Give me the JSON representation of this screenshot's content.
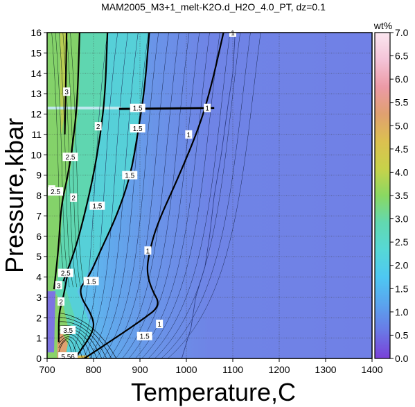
{
  "chart_data": {
    "type": "heatmap",
    "title": "MAM2005_M3+1_melt-K2O.d_H2O_4.0_PT, dz=0.1",
    "xlabel": "Temperature,C",
    "ylabel": "Pressure,kbar",
    "xlim": [
      700,
      1400
    ],
    "ylim": [
      0,
      16
    ],
    "x_ticks": [
      "700",
      "800",
      "900",
      "1000",
      "1100",
      "1200",
      "1300",
      "1400"
    ],
    "y_ticks": [
      "0",
      "1",
      "2",
      "3",
      "4",
      "5",
      "6",
      "7",
      "8",
      "9",
      "10",
      "11",
      "12",
      "13",
      "14",
      "15",
      "16"
    ],
    "grid": true,
    "colorbar": {
      "label": "wt%",
      "range": [
        0,
        7
      ],
      "ticks": [
        "0.0",
        "0.5",
        "1.0",
        "1.5",
        "2.0",
        "2.5",
        "3.0",
        "3.5",
        "4.0",
        "4.5",
        "5.0",
        "5.5",
        "6.0",
        "6.5",
        "7.0"
      ],
      "colors": [
        "#7a40d8",
        "#6a78e6",
        "#5aa4ee",
        "#4ec8f2",
        "#56d8d6",
        "#62d8b0",
        "#8ad862",
        "#c8d24a",
        "#dcc050",
        "#e0a070",
        "#ec9aa6",
        "#f4c4d8",
        "#fbe6f0"
      ]
    },
    "bold_contours": [
      {
        "level": 1,
        "points": [
          [
            780,
            0
          ],
          [
            840,
            0.9
          ],
          [
            905,
            1.9
          ],
          [
            945,
            2.6
          ],
          [
            925,
            3.4
          ],
          [
            915,
            4.2
          ],
          [
            918,
            5.0
          ],
          [
            935,
            6.5
          ],
          [
            985,
            9.0
          ],
          [
            1030,
            11.5
          ],
          [
            1055,
            13.5
          ],
          [
            1080,
            16
          ]
        ]
      },
      {
        "level": 1.5,
        "points": [
          [
            760,
            0
          ],
          [
            800,
            1.3
          ],
          [
            800,
            2.0
          ],
          [
            765,
            3.3
          ],
          [
            790,
            4.0
          ],
          [
            815,
            5.3
          ],
          [
            850,
            7.0
          ],
          [
            880,
            9.0
          ],
          [
            895,
            11.0
          ],
          [
            910,
            13.2
          ],
          [
            920,
            16
          ]
        ]
      },
      {
        "level": 2,
        "points": [
          [
            735,
            3.8
          ],
          [
            760,
            5.3
          ],
          [
            780,
            7.0
          ],
          [
            800,
            9.0
          ],
          [
            815,
            11.0
          ],
          [
            825,
            13.0
          ],
          [
            830,
            16
          ]
        ]
      },
      {
        "level": 2.5,
        "points": [
          [
            715,
            3.4
          ],
          [
            725,
            5.5
          ],
          [
            730,
            7.5
          ],
          [
            745,
            9.0
          ],
          [
            755,
            10.5
          ],
          [
            765,
            12.5
          ],
          [
            770,
            16
          ]
        ]
      },
      {
        "level": 3,
        "points": [
          [
            725,
            0.8
          ],
          [
            725,
            2.2
          ],
          [
            735,
            3.0
          ],
          [
            745,
            4.3
          ]
        ]
      },
      {
        "level": 3,
        "points": [
          [
            738,
            11.0
          ],
          [
            740,
            13.0
          ],
          [
            742,
            16
          ]
        ]
      }
    ],
    "contour_labels": [
      {
        "text": "1",
        "x": 1100,
        "y": 16.0
      },
      {
        "text": "1",
        "x": 1005,
        "y": 11.0
      },
      {
        "text": "1",
        "x": 1045,
        "y": 12.3
      },
      {
        "text": "1",
        "x": 917,
        "y": 5.3
      },
      {
        "text": "1",
        "x": 942,
        "y": 1.7
      },
      {
        "text": "1.5",
        "x": 895,
        "y": 11.3
      },
      {
        "text": "1.5",
        "x": 895,
        "y": 12.3
      },
      {
        "text": "1.5",
        "x": 878,
        "y": 9.0
      },
      {
        "text": "1.5",
        "x": 808,
        "y": 7.5
      },
      {
        "text": "1.5",
        "x": 795,
        "y": 3.8
      },
      {
        "text": "1.5",
        "x": 910,
        "y": 1.1
      },
      {
        "text": "2",
        "x": 810,
        "y": 11.4
      },
      {
        "text": "2",
        "x": 757,
        "y": 7.9
      },
      {
        "text": "2",
        "x": 710,
        "y": 8.3
      },
      {
        "text": "2",
        "x": 730,
        "y": 2.8
      },
      {
        "text": "2.5",
        "x": 750,
        "y": 9.9
      },
      {
        "text": "2.5",
        "x": 718,
        "y": 8.2
      },
      {
        "text": "2.5",
        "x": 740,
        "y": 4.2
      },
      {
        "text": "3",
        "x": 742,
        "y": 13.1
      },
      {
        "text": "3",
        "x": 725,
        "y": 3.6
      },
      {
        "text": "3.5",
        "x": 745,
        "y": 1.4
      },
      {
        "text": "5.56",
        "x": 745,
        "y": 0.1
      }
    ]
  }
}
